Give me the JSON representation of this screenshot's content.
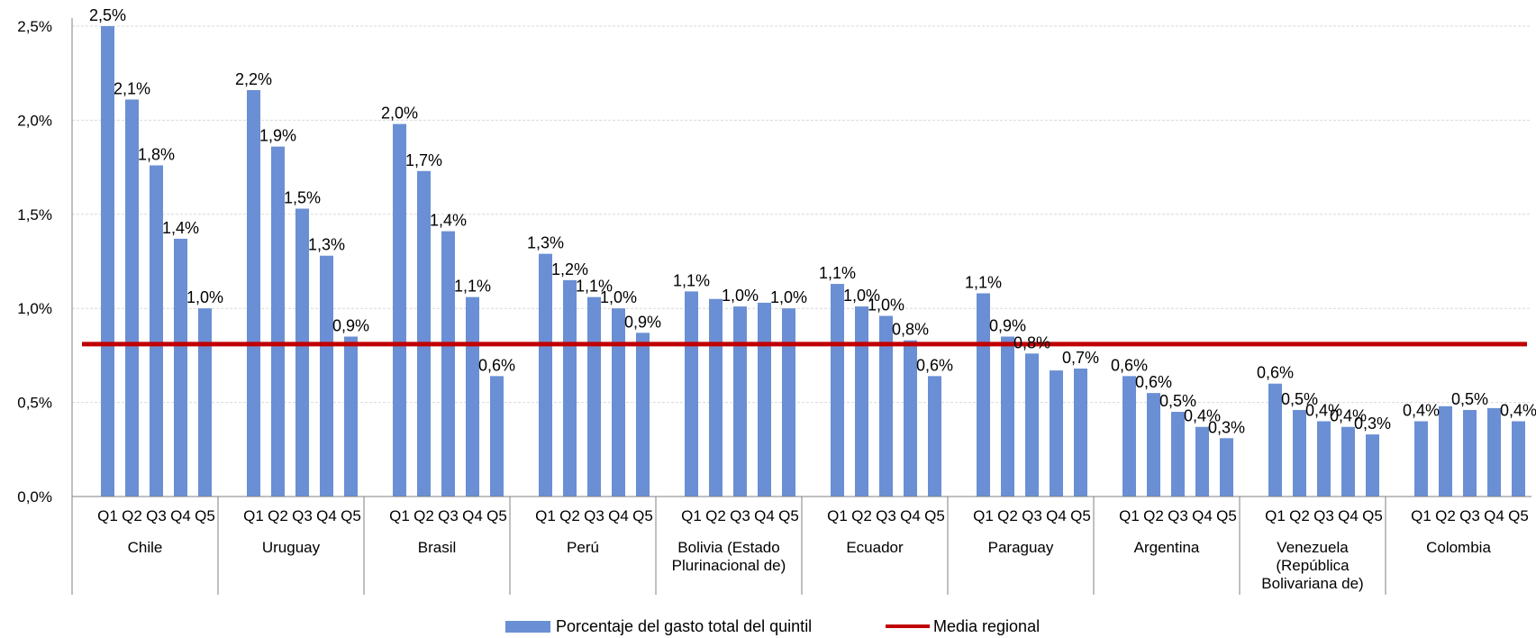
{
  "chart_data": {
    "type": "bar",
    "groups": [
      "Chile",
      "Uruguay",
      "Brasil",
      "Perú",
      "Bolivia (Estado Plurinacional de)",
      "Ecuador",
      "Paraguay",
      "Argentina",
      "Venezuela (República Bolivariana de)",
      "Colombia"
    ],
    "group_label_lines": [
      [
        "Chile"
      ],
      [
        "Uruguay"
      ],
      [
        "Brasil"
      ],
      [
        "Perú"
      ],
      [
        "Bolivia (Estado",
        "Plurinacional de)"
      ],
      [
        "Ecuador"
      ],
      [
        "Paraguay"
      ],
      [
        "Argentina"
      ],
      [
        "Venezuela",
        "(República",
        "Bolivariana de)"
      ],
      [
        "Colombia"
      ]
    ],
    "quintiles": [
      "Q1",
      "Q2",
      "Q3",
      "Q4",
      "Q5"
    ],
    "series": [
      {
        "name": "Porcentaje del gasto total del quintil",
        "color": "#6A8FD4",
        "values": [
          [
            2.5,
            2.11,
            1.76,
            1.37,
            1.0
          ],
          [
            2.16,
            1.86,
            1.53,
            1.28,
            0.85
          ],
          [
            1.98,
            1.73,
            1.41,
            1.06,
            0.64
          ],
          [
            1.29,
            1.15,
            1.06,
            1.0,
            0.87
          ],
          [
            1.09,
            1.05,
            1.01,
            1.03,
            1.0
          ],
          [
            1.13,
            1.01,
            0.96,
            0.83,
            0.64
          ],
          [
            1.08,
            0.85,
            0.76,
            0.67,
            0.68
          ],
          [
            0.64,
            0.55,
            0.45,
            0.37,
            0.31
          ],
          [
            0.6,
            0.46,
            0.4,
            0.37,
            0.33
          ],
          [
            0.4,
            0.48,
            0.46,
            0.47,
            0.4
          ]
        ],
        "labels": [
          [
            "2,5%",
            "2,1%",
            "1,8%",
            "1,4%",
            "1,0%"
          ],
          [
            "2,2%",
            "1,9%",
            "1,5%",
            "1,3%",
            "0,9%"
          ],
          [
            "2,0%",
            "1,7%",
            "1,4%",
            "1,1%",
            "0,6%"
          ],
          [
            "1,3%",
            "1,2%",
            "1,1%",
            "1,0%",
            "0,9%"
          ],
          [
            "1,1%",
            "",
            "1,0%",
            "",
            "1,0%"
          ],
          [
            "1,1%",
            "1,0%",
            "1,0%",
            "0,8%",
            "0,6%"
          ],
          [
            "1,1%",
            "0,9%",
            "0,8%",
            "",
            "0,7%"
          ],
          [
            "0,6%",
            "0,6%",
            "0,5%",
            "0,4%",
            "0,3%"
          ],
          [
            "0,6%",
            "0,5%",
            "0,4%",
            "0,4%",
            "0,3%"
          ],
          [
            "0,4%",
            "",
            "0,5%",
            "",
            "0,4%"
          ]
        ]
      },
      {
        "name": "Media regional",
        "type": "line",
        "color": "#C00000",
        "value": 0.81
      }
    ],
    "ylim": [
      0,
      2.5
    ],
    "yticks": [
      0,
      0.5,
      1.0,
      1.5,
      2.0,
      2.5
    ],
    "ytick_labels": [
      "0,0%",
      "0,5%",
      "1,0%",
      "1,5%",
      "2,0%",
      "2,5%"
    ],
    "grid": true,
    "legend_position": "bottom"
  }
}
